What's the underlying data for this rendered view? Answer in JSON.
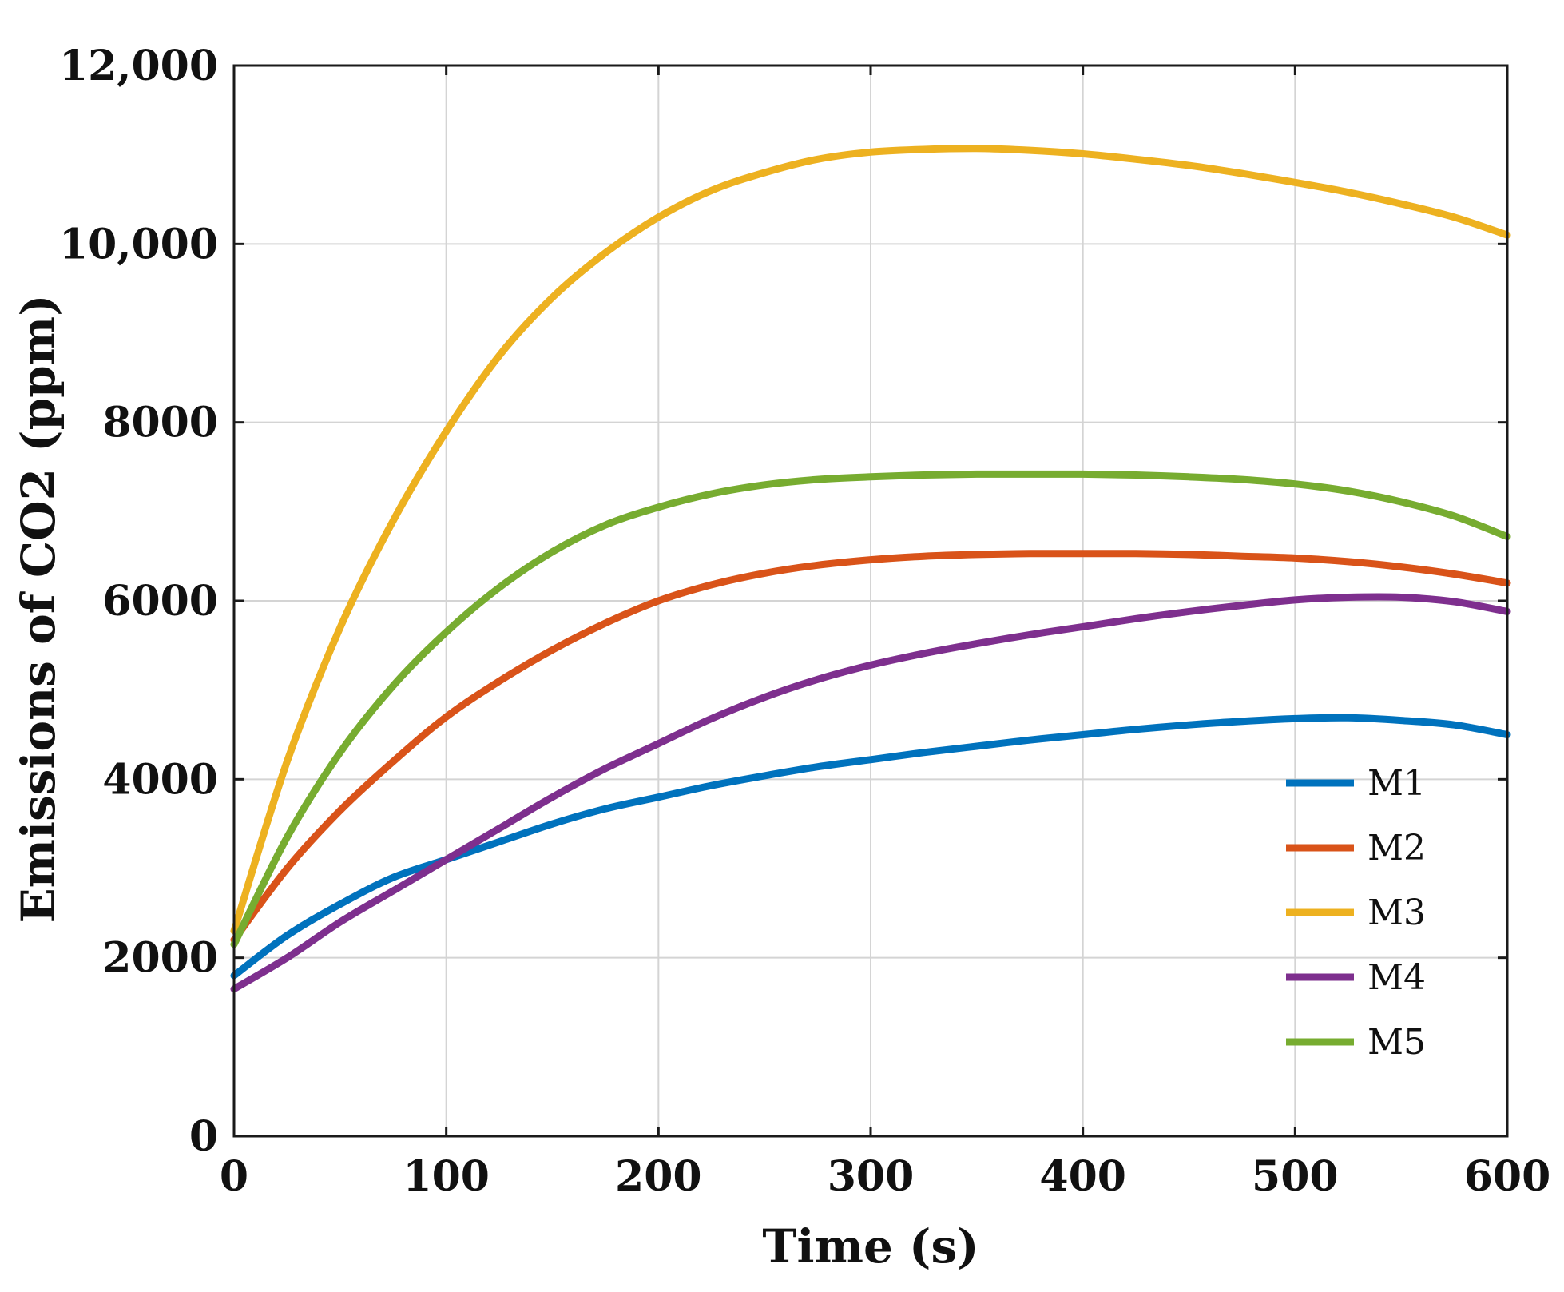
{
  "chart_data": {
    "type": "line",
    "title": "",
    "xlabel": "Time (s)",
    "ylabel": "Emissions of CO2 (ppm)",
    "xlim": [
      0,
      600
    ],
    "ylim": [
      0,
      12000
    ],
    "xticks": [
      0,
      100,
      200,
      300,
      400,
      500,
      600
    ],
    "xtick_labels": [
      "0",
      "100",
      "200",
      "300",
      "400",
      "500",
      "600"
    ],
    "yticks": [
      0,
      2000,
      4000,
      6000,
      8000,
      10000,
      12000
    ],
    "ytick_labels": [
      "0",
      "2000",
      "4000",
      "6000",
      "8000",
      "10,000",
      "12,000"
    ],
    "grid": true,
    "legend_position": "bottom-right",
    "x": [
      0,
      25,
      50,
      75,
      100,
      125,
      150,
      175,
      200,
      225,
      250,
      275,
      300,
      325,
      350,
      375,
      400,
      425,
      450,
      475,
      500,
      525,
      550,
      575,
      600
    ],
    "series": [
      {
        "name": "M1",
        "color": "#0072BD",
        "values": [
          1800,
          2250,
          2600,
          2900,
          3100,
          3300,
          3500,
          3670,
          3800,
          3930,
          4040,
          4140,
          4220,
          4300,
          4370,
          4440,
          4500,
          4560,
          4610,
          4650,
          4680,
          4690,
          4660,
          4610,
          4500
        ]
      },
      {
        "name": "M2",
        "color": "#D95319",
        "values": [
          2200,
          3000,
          3650,
          4200,
          4700,
          5100,
          5450,
          5750,
          6000,
          6180,
          6310,
          6400,
          6460,
          6500,
          6520,
          6530,
          6530,
          6530,
          6520,
          6500,
          6480,
          6440,
          6380,
          6300,
          6200
        ]
      },
      {
        "name": "M3",
        "color": "#EDB120",
        "values": [
          2300,
          4200,
          5700,
          6900,
          7900,
          8750,
          9400,
          9900,
          10300,
          10600,
          10800,
          10950,
          11030,
          11060,
          11070,
          11050,
          11010,
          10950,
          10880,
          10790,
          10690,
          10580,
          10450,
          10300,
          10100
        ]
      },
      {
        "name": "M4",
        "color": "#7E2F8E",
        "values": [
          1650,
          2000,
          2400,
          2750,
          3100,
          3450,
          3800,
          4120,
          4400,
          4680,
          4920,
          5120,
          5280,
          5410,
          5520,
          5620,
          5710,
          5800,
          5880,
          5950,
          6010,
          6040,
          6040,
          5990,
          5880
        ]
      },
      {
        "name": "M5",
        "color": "#77AC30",
        "values": [
          2150,
          3350,
          4300,
          5050,
          5650,
          6150,
          6550,
          6850,
          7050,
          7200,
          7300,
          7360,
          7390,
          7410,
          7420,
          7420,
          7420,
          7410,
          7390,
          7360,
          7310,
          7230,
          7110,
          6950,
          6720
        ]
      }
    ]
  }
}
